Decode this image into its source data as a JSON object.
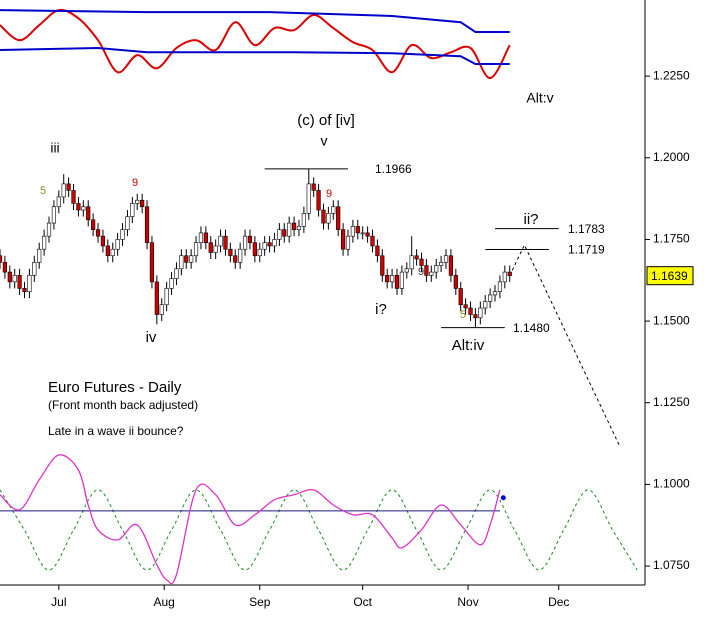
{
  "chart_data": {
    "type": "candlestick",
    "title": "Euro Futures - Daily",
    "subtitle": "(Front month back adjusted)",
    "note": "Late in a wave ii bounce?",
    "xlim": [
      0,
      131.6
    ],
    "ylim": [
      1.0692,
      1.2483
    ],
    "xticks": [
      {
        "value": 12,
        "label": "Jul"
      },
      {
        "value": 33.5,
        "label": "Aug"
      },
      {
        "value": 53,
        "label": "Sep"
      },
      {
        "value": 74,
        "label": "Oct"
      },
      {
        "value": 95.5,
        "label": "Nov"
      },
      {
        "value": 114,
        "label": "Dec"
      }
    ],
    "yticks": [
      {
        "value": 1.225,
        "label": "1.2250"
      },
      {
        "value": 1.2,
        "label": "1.2000"
      },
      {
        "value": 1.175,
        "label": "1.1750"
      },
      {
        "value": 1.15,
        "label": "1.1500"
      },
      {
        "value": 1.125,
        "label": "1.1250"
      },
      {
        "value": 1.1,
        "label": "1.1000"
      },
      {
        "value": 1.075,
        "label": "1.0750"
      }
    ],
    "up_color": "#ffffff",
    "down_color": "#cc0000",
    "x": [
      0,
      1,
      2,
      3,
      4,
      5,
      6,
      7,
      8,
      9,
      10,
      11,
      12,
      13,
      14,
      15,
      16,
      17,
      18,
      19,
      20,
      21,
      22,
      23,
      24,
      25,
      26,
      27,
      28,
      29,
      30,
      31,
      32,
      33,
      34,
      35,
      36,
      37,
      38,
      39,
      40,
      41,
      42,
      43,
      44,
      45,
      46,
      47,
      48,
      49,
      50,
      51,
      52,
      53,
      54,
      55,
      56,
      57,
      58,
      59,
      60,
      61,
      62,
      63,
      64,
      65,
      66,
      67,
      68,
      69,
      70,
      71,
      72,
      73,
      74,
      75,
      76,
      77,
      78,
      79,
      80,
      81,
      82,
      83,
      84,
      85,
      86,
      87,
      88,
      89,
      90,
      91,
      92,
      93,
      94,
      95,
      96,
      97,
      98,
      99,
      100,
      101,
      102,
      103,
      104
    ],
    "open": [
      1.17,
      1.168,
      1.165,
      1.162,
      1.164,
      1.16,
      1.159,
      1.164,
      1.168,
      1.172,
      1.176,
      1.18,
      1.185,
      1.188,
      1.192,
      1.19,
      1.186,
      1.184,
      1.185,
      1.181,
      1.178,
      1.176,
      1.173,
      1.17,
      1.172,
      1.175,
      1.178,
      1.182,
      1.186,
      1.187,
      1.185,
      1.174,
      1.162,
      1.152,
      1.155,
      1.16,
      1.163,
      1.166,
      1.17,
      1.168,
      1.17,
      1.174,
      1.177,
      1.174,
      1.171,
      1.173,
      1.176,
      1.172,
      1.17,
      1.168,
      1.172,
      1.176,
      1.174,
      1.17,
      1.172,
      1.174,
      1.173,
      1.175,
      1.178,
      1.176,
      1.18,
      1.178,
      1.179,
      1.183,
      1.192,
      1.19,
      1.184,
      1.18,
      1.183,
      1.185,
      1.178,
      1.172,
      1.176,
      1.179,
      1.177,
      1.177,
      1.176,
      1.173,
      1.17,
      1.164,
      1.162,
      1.164,
      1.16,
      1.165,
      1.166,
      1.17,
      1.169,
      1.167,
      1.164,
      1.165,
      1.167,
      1.168,
      1.17,
      1.164,
      1.16,
      1.155,
      1.154,
      1.152,
      1.151,
      1.154,
      1.156,
      1.158,
      1.159,
      1.162,
      1.165
    ],
    "high": [
      1.172,
      1.17,
      1.167,
      1.166,
      1.166,
      1.162,
      1.166,
      1.17,
      1.174,
      1.178,
      1.182,
      1.187,
      1.19,
      1.195,
      1.194,
      1.192,
      1.188,
      1.187,
      1.187,
      1.183,
      1.18,
      1.178,
      1.175,
      1.174,
      1.177,
      1.18,
      1.184,
      1.188,
      1.189,
      1.189,
      1.187,
      1.176,
      1.164,
      1.157,
      1.162,
      1.165,
      1.168,
      1.172,
      1.172,
      1.172,
      1.176,
      1.179,
      1.179,
      1.176,
      1.175,
      1.178,
      1.178,
      1.174,
      1.172,
      1.174,
      1.178,
      1.178,
      1.176,
      1.174,
      1.176,
      1.176,
      1.177,
      1.18,
      1.18,
      1.182,
      1.182,
      1.181,
      1.185,
      1.1966,
      1.194,
      1.192,
      1.186,
      1.185,
      1.187,
      1.187,
      1.18,
      1.178,
      1.181,
      1.181,
      1.179,
      1.179,
      1.178,
      1.175,
      1.172,
      1.166,
      1.166,
      1.166,
      1.167,
      1.168,
      1.176,
      1.172,
      1.171,
      1.169,
      1.167,
      1.169,
      1.17,
      1.172,
      1.172,
      1.166,
      1.162,
      1.157,
      1.156,
      1.154,
      1.156,
      1.158,
      1.16,
      1.161,
      1.164,
      1.167,
      1.167
    ],
    "low": [
      1.166,
      1.163,
      1.16,
      1.16,
      1.158,
      1.157,
      1.157,
      1.162,
      1.166,
      1.17,
      1.174,
      1.178,
      1.183,
      1.186,
      1.188,
      1.184,
      1.182,
      1.182,
      1.179,
      1.176,
      1.174,
      1.171,
      1.168,
      1.168,
      1.17,
      1.173,
      1.176,
      1.18,
      1.184,
      1.183,
      1.172,
      1.16,
      1.149,
      1.15,
      1.153,
      1.158,
      1.161,
      1.164,
      1.166,
      1.166,
      1.168,
      1.172,
      1.172,
      1.169,
      1.169,
      1.171,
      1.17,
      1.168,
      1.166,
      1.166,
      1.17,
      1.172,
      1.168,
      1.168,
      1.17,
      1.171,
      1.171,
      1.173,
      1.174,
      1.174,
      1.176,
      1.176,
      1.177,
      1.181,
      1.188,
      1.182,
      1.178,
      1.178,
      1.181,
      1.176,
      1.17,
      1.17,
      1.174,
      1.175,
      1.175,
      1.174,
      1.171,
      1.168,
      1.162,
      1.16,
      1.16,
      1.158,
      1.158,
      1.163,
      1.164,
      1.167,
      1.165,
      1.162,
      1.162,
      1.163,
      1.165,
      1.166,
      1.162,
      1.158,
      1.153,
      1.152,
      1.15,
      1.148,
      1.149,
      1.152,
      1.154,
      1.156,
      1.157,
      1.16,
      1.162
    ],
    "close": [
      1.168,
      1.165,
      1.162,
      1.164,
      1.16,
      1.159,
      1.164,
      1.168,
      1.172,
      1.176,
      1.18,
      1.185,
      1.188,
      1.192,
      1.19,
      1.186,
      1.184,
      1.185,
      1.181,
      1.178,
      1.176,
      1.173,
      1.17,
      1.172,
      1.175,
      1.178,
      1.182,
      1.186,
      1.187,
      1.185,
      1.174,
      1.162,
      1.152,
      1.155,
      1.16,
      1.163,
      1.166,
      1.17,
      1.168,
      1.17,
      1.174,
      1.177,
      1.174,
      1.171,
      1.173,
      1.176,
      1.172,
      1.17,
      1.168,
      1.172,
      1.176,
      1.174,
      1.17,
      1.172,
      1.174,
      1.173,
      1.175,
      1.178,
      1.176,
      1.18,
      1.178,
      1.179,
      1.183,
      1.192,
      1.19,
      1.184,
      1.18,
      1.183,
      1.185,
      1.178,
      1.172,
      1.176,
      1.179,
      1.177,
      1.177,
      1.176,
      1.173,
      1.17,
      1.164,
      1.162,
      1.164,
      1.16,
      1.165,
      1.166,
      1.17,
      1.169,
      1.167,
      1.164,
      1.165,
      1.167,
      1.168,
      1.17,
      1.164,
      1.16,
      1.155,
      1.154,
      1.152,
      1.151,
      1.154,
      1.156,
      1.158,
      1.159,
      1.162,
      1.165,
      1.1639
    ],
    "last_color": "#ffff00",
    "levels": [
      {
        "value": 1.1966,
        "label": "1.1966"
      },
      {
        "value": 1.1783,
        "label": "1.1783"
      },
      {
        "value": 1.1719,
        "label": "1.1719"
      },
      {
        "value": 1.148,
        "label": "1.1480"
      }
    ],
    "overlays": [
      {
        "color": "#dd0000",
        "width": 2,
        "smooth": true,
        "x": [
          0,
          4,
          8,
          12,
          16,
          20,
          24,
          28,
          32,
          36,
          40,
          44,
          48,
          52,
          56,
          60,
          64,
          68,
          72,
          76,
          80,
          84,
          88,
          92,
          96,
          100,
          104
        ],
        "values": [
          1.2406,
          1.236,
          1.2406,
          1.2452,
          1.2427,
          1.236,
          1.2262,
          1.2314,
          1.2274,
          1.2336,
          1.236,
          1.233,
          1.2415,
          1.2345,
          1.2397,
          1.2391,
          1.2437,
          1.2397,
          1.2354,
          1.233,
          1.2262,
          1.2345,
          1.2305,
          1.2323,
          1.2336,
          1.2244,
          1.2345
        ]
      },
      {
        "color": "#0000cc",
        "width": 2,
        "x": [
          0,
          30,
          55,
          80,
          94,
          97,
          104
        ],
        "values": [
          1.2452,
          1.2446,
          1.2446,
          1.2434,
          1.2415,
          1.2385,
          1.2385
        ]
      },
      {
        "color": "#0000cc",
        "width": 2,
        "x": [
          0,
          20,
          30,
          60,
          80,
          94,
          97,
          104
        ],
        "values": [
          1.233,
          1.2336,
          1.2323,
          1.2323,
          1.232,
          1.2311,
          1.2287,
          1.2287
        ]
      },
      {
        "color": "#1a8a1a",
        "width": 1,
        "dash": true,
        "smooth": true,
        "x": [
          0,
          5,
          10,
          15,
          20,
          25,
          30,
          35,
          40,
          45,
          50,
          55,
          60,
          65,
          70,
          75,
          80,
          85,
          90,
          95,
          100,
          105,
          110,
          115,
          120,
          125,
          130
        ],
        "values": [
          1.0983,
          1.086,
          1.0738,
          1.086,
          1.0983,
          1.086,
          1.0738,
          1.086,
          1.0983,
          1.086,
          1.0738,
          1.086,
          1.0983,
          1.086,
          1.0738,
          1.086,
          1.0983,
          1.086,
          1.0738,
          1.086,
          1.0983,
          1.086,
          1.0738,
          1.086,
          1.0983,
          1.086,
          1.0738
        ]
      },
      {
        "color": "#1a1a80",
        "width": 1,
        "x": [
          0,
          102
        ],
        "values": [
          1.0919,
          1.0919
        ]
      },
      {
        "color": "#dd33cc",
        "width": 1.3,
        "smooth": true,
        "x": [
          0,
          4,
          8,
          12,
          16,
          18,
          20,
          24,
          28,
          32,
          34,
          36,
          40,
          44,
          48,
          52,
          56,
          60,
          64,
          68,
          72,
          76,
          80,
          82,
          86,
          90,
          94,
          98,
          100,
          102
        ],
        "values": [
          1.0968,
          1.0922,
          1.1014,
          1.109,
          1.1044,
          1.0937,
          1.0861,
          1.083,
          1.0876,
          1.0754,
          1.0708,
          1.0723,
          1.0983,
          1.0968,
          1.0876,
          1.0907,
          1.0953,
          1.0968,
          1.0983,
          1.0937,
          1.0907,
          1.0907,
          1.0836,
          1.0806,
          1.0861,
          1.0937,
          1.0876,
          1.0815,
          1.0876,
          1.0983
        ]
      },
      {
        "color": "#000000",
        "width": 1,
        "dash": true,
        "x": [
          104,
          107,
          126.5
        ],
        "values": [
          1.1639,
          1.1733,
          1.1115
        ]
      }
    ],
    "dots": [
      {
        "color": "#0000dd",
        "x": 102.7,
        "value": 1.0959
      }
    ],
    "annotations": [
      {
        "text": "(c) of [iv]",
        "color": "#000000"
      },
      {
        "text": "v",
        "color": "#000000"
      },
      {
        "text": "iii",
        "color": "#000000"
      },
      {
        "text": "iv",
        "color": "#000000"
      },
      {
        "text": "i?",
        "color": "#000000"
      },
      {
        "text": "ii?",
        "color": "#000000"
      },
      {
        "text": "Alt:iv",
        "color": "#000000"
      },
      {
        "text": "Alt:v",
        "color": "#000000"
      },
      {
        "text": "5",
        "color": "#8a8a20"
      },
      {
        "text": "9",
        "color": "#cc0000"
      },
      {
        "text": "9",
        "color": "#cc0000"
      },
      {
        "text": "9",
        "color": "#333333"
      },
      {
        "text": "5",
        "color": "#8a8a20"
      }
    ]
  }
}
